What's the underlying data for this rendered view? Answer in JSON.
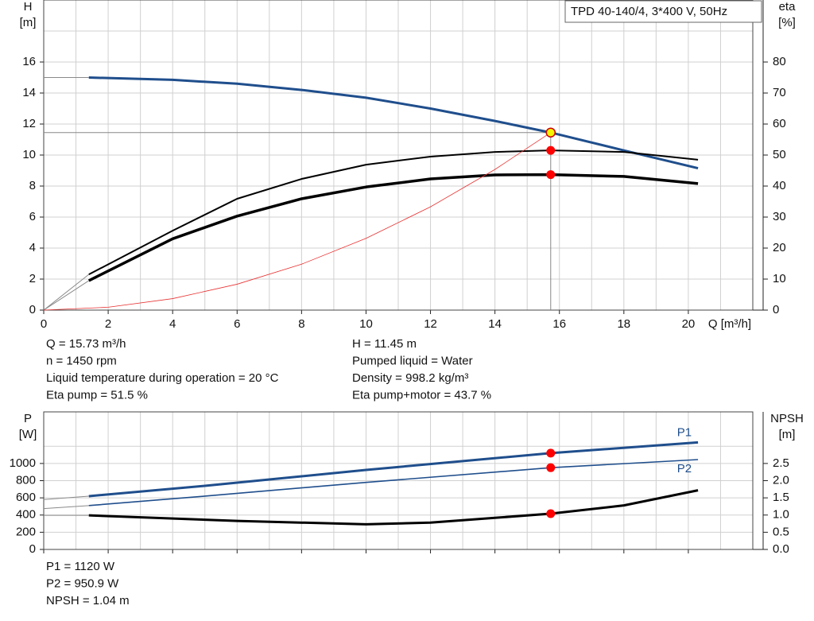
{
  "chart_data": [
    {
      "type": "line",
      "xlim": [
        0,
        22
      ],
      "xticks": [
        0,
        2,
        4,
        6,
        8,
        10,
        12,
        14,
        16,
        18,
        20
      ],
      "x_label": "Q [m³/h]",
      "ylim": [
        0,
        20
      ],
      "yticks": [
        0,
        2,
        4,
        6,
        8,
        10,
        12,
        14,
        16
      ],
      "y_label": [
        "H",
        "[m]"
      ],
      "y2lim": [
        0,
        100
      ],
      "y2ticks": [
        0,
        10,
        20,
        30,
        40,
        50,
        60,
        70,
        80
      ],
      "y2_label": [
        "eta",
        "[%]"
      ],
      "grid": true,
      "annotation": "TPD 40-140/4, 3*400 V, 50Hz",
      "series": [
        {
          "color": "#8a8a8a",
          "width": 1,
          "x": [
            0,
            1.4
          ],
          "values": [
            15.0,
            15.0
          ]
        },
        {
          "color": "#1f4e8c",
          "width": 3,
          "x": [
            1.4,
            4,
            6,
            8,
            10,
            12,
            14,
            15.73,
            18,
            20.3
          ],
          "values": [
            15.0,
            14.85,
            14.6,
            14.2,
            13.7,
            13.0,
            12.2,
            11.45,
            10.3,
            9.15
          ]
        },
        {
          "color": "#8a8a8a",
          "width": 1,
          "axis": "y2",
          "x": [
            0,
            1.4
          ],
          "values": [
            0,
            11.5
          ]
        },
        {
          "color": "#000000",
          "width": 2,
          "axis": "y2",
          "x": [
            1.4,
            4,
            6,
            8,
            10,
            12,
            14,
            15.73,
            18,
            20.3
          ],
          "values": [
            11.5,
            25.6,
            35.9,
            42.3,
            46.9,
            49.5,
            51,
            51.5,
            51,
            48.5
          ]
        },
        {
          "color": "#8a8a8a",
          "width": 1,
          "axis": "y2",
          "x": [
            0,
            1.4
          ],
          "values": [
            0,
            9.5
          ]
        },
        {
          "color": "#000000",
          "width": 3.5,
          "axis": "y2",
          "x": [
            1.4,
            4,
            6,
            8,
            10,
            12,
            14,
            15.73,
            18,
            20.3
          ],
          "values": [
            9.5,
            23,
            30.3,
            35.9,
            39.7,
            42.3,
            43.6,
            43.7,
            43.1,
            40.8
          ]
        },
        {
          "color": "#e83030",
          "width": 0.8,
          "x": [
            0,
            2,
            4,
            6,
            8,
            10,
            12,
            14,
            15.73
          ],
          "values": [
            0,
            0.185,
            0.74,
            1.67,
            2.96,
            4.63,
            6.66,
            9.07,
            11.45
          ]
        }
      ],
      "markers": [
        {
          "x": 15.73,
          "y": 11.45,
          "color": "#f5f500",
          "crosshair": true
        },
        {
          "x": 15.73,
          "y": 51.5,
          "axis": "y2",
          "color": "#ff0000"
        },
        {
          "x": 15.73,
          "y": 43.7,
          "axis": "y2",
          "color": "#ff0000"
        }
      ],
      "readout": [
        [
          "Q = 15.73 m³/h",
          "n = 1450 rpm",
          "Liquid temperature during operation = 20 °C",
          "Eta pump = 51.5 %"
        ],
        [
          "H = 11.45 m",
          "Pumped liquid = Water",
          "Density = 998.2 kg/m³",
          "Eta pump+motor = 43.7 %"
        ]
      ]
    },
    {
      "type": "line",
      "xlim": [
        0,
        22
      ],
      "xticks": [
        0,
        2,
        4,
        6,
        8,
        10,
        12,
        14,
        16,
        18,
        20
      ],
      "show_xtick_labels": false,
      "ylim": [
        0,
        1600
      ],
      "yticks": [
        0,
        200,
        400,
        600,
        800,
        1000
      ],
      "y_label": [
        "P",
        "[W]"
      ],
      "y2lim": [
        0,
        4
      ],
      "y2ticks": [
        {
          "value": 0,
          "label": "0.0"
        },
        0.5,
        {
          "value": 1,
          "label": "1.0"
        },
        1.5,
        {
          "value": 2,
          "label": "2.0"
        },
        2.5
      ],
      "y2_label": [
        "NPSH",
        "[m]"
      ],
      "grid": true,
      "series": [
        {
          "color": "#8a8a8a",
          "width": 1,
          "x": [
            0,
            1.4
          ],
          "values": [
            580,
            620
          ]
        },
        {
          "name": "P1",
          "color": "#1f4e8c",
          "width": 3,
          "x": [
            1.4,
            5,
            10,
            15.73,
            20.3
          ],
          "values": [
            620,
            740,
            925,
            1120,
            1245
          ]
        },
        {
          "color": "#8a8a8a",
          "width": 1,
          "x": [
            0,
            1.4
          ],
          "values": [
            475,
            510
          ]
        },
        {
          "name": "P2",
          "color": "#1f4e8c",
          "width": 1.6,
          "x": [
            1.4,
            5,
            10,
            15.73,
            20.3
          ],
          "values": [
            510,
            620,
            780,
            950.9,
            1045
          ]
        },
        {
          "color": "#8a8a8a",
          "width": 1,
          "axis": "y2",
          "x": [
            0,
            1.4
          ],
          "values": [
            0.99,
            0.99
          ]
        },
        {
          "color": "#000000",
          "width": 3,
          "axis": "y2",
          "x": [
            1.4,
            6,
            10,
            12,
            15.73,
            18,
            20.3
          ],
          "values": [
            0.99,
            0.83,
            0.73,
            0.78,
            1.04,
            1.28,
            1.72
          ]
        }
      ],
      "markers": [
        {
          "x": 15.73,
          "y": 1120,
          "color": "#ff0000"
        },
        {
          "x": 15.73,
          "y": 950.9,
          "color": "#ff0000"
        },
        {
          "x": 15.73,
          "y": 1.04,
          "axis": "y2",
          "color": "#ff0000"
        }
      ],
      "readout": [
        [
          "P1 = 1120 W",
          "P2 = 950.9 W",
          "NPSH = 1.04 m"
        ]
      ]
    }
  ]
}
